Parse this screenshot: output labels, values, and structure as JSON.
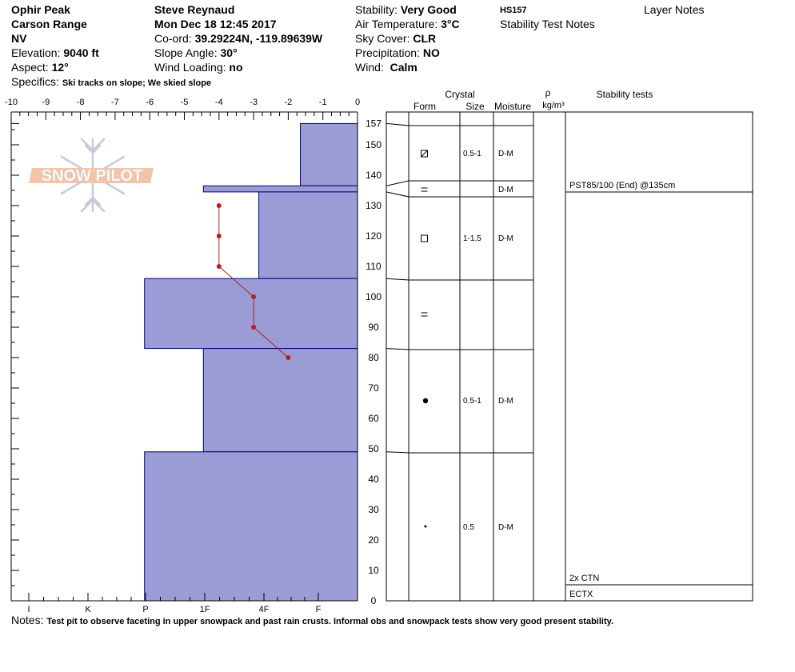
{
  "header": {
    "location": "Ophir Peak",
    "range": "Carson Range",
    "state": "NV",
    "elevation_label": "Elevation:",
    "elevation": "9040 ft",
    "aspect_label": "Aspect:",
    "aspect": "12°",
    "specifics_label": "Specifics:",
    "specifics": "Ski tracks on slope; We skied slope",
    "observer": "Steve Reynaud",
    "datetime": "Mon Dec 18 12:45 2017",
    "coord_label": "Co-ord:",
    "coord": "39.29224N, -119.89639W",
    "slope_label": "Slope Angle:",
    "slope": "30°",
    "wind_loading_label": "Wind Loading:",
    "wind_loading": "no",
    "stability_label": "Stability:",
    "stability": "Very Good",
    "air_temp_label": "Air Temperature:",
    "air_temp": "3°C",
    "sky_label": "Sky Cover:",
    "sky": "CLR",
    "precip_label": "Precipitation:",
    "precip": "NO",
    "wind_label": "Wind:",
    "wind": "Calm",
    "hs": "HS157",
    "stability_notes": "Stability Test Notes",
    "layer_notes": "Layer Notes"
  },
  "logo_text": "SNOW PILOT",
  "notes_label": "Notes:",
  "notes": "Test pit to observe faceting in upper snowpack and past rain crusts.  Informal obs and snowpack tests show very good present stability.",
  "table_headers": {
    "crystal": "Crystal",
    "form": "Form",
    "size": "Size",
    "moisture": "Moisture",
    "rho": "ρ",
    "density_unit": "kg/m³",
    "stability_tests": "Stability tests"
  },
  "colors": {
    "layer_fill": "#9b9bd6",
    "layer_stroke": "#000080",
    "temp_line": "#b22222"
  },
  "chart_data": {
    "type": "bar",
    "orientation": "horizontal",
    "x_temp_ticks": [
      "-10",
      "-9",
      "-8",
      "-7",
      "-6",
      "-5",
      "-4",
      "-3",
      "-2",
      "-1",
      "0"
    ],
    "x_temp_range": [
      -10,
      0
    ],
    "hardness_ticks": [
      "I",
      "K",
      "P",
      "1F",
      "4F",
      "F"
    ],
    "y_range": [
      0,
      160
    ],
    "y_ticks": [
      "0",
      "10",
      "20",
      "30",
      "40",
      "50",
      "60",
      "70",
      "80",
      "90",
      "100",
      "110",
      "120",
      "130",
      "140",
      "150",
      "157"
    ],
    "layers": [
      {
        "bottom": 136.5,
        "top": 157,
        "hardness_temp": -1.65,
        "form": "facets-rounding",
        "size": "0.5-1",
        "moisture": "D-M"
      },
      {
        "bottom": 134.5,
        "top": 136.5,
        "hardness_temp": -4.45,
        "form": "crust",
        "size": "",
        "moisture": "D-M"
      },
      {
        "bottom": 106,
        "top": 134.5,
        "hardness_temp": -2.85,
        "form": "faceted",
        "size": "1-1.5",
        "moisture": "D-M"
      },
      {
        "bottom": 83,
        "top": 106,
        "hardness_temp": -6.15,
        "form": "crust",
        "size": "",
        "moisture": ""
      },
      {
        "bottom": 49,
        "top": 83,
        "hardness_temp": -4.45,
        "form": "rounded",
        "size": "0.5-1",
        "moisture": "D-M"
      },
      {
        "bottom": 0,
        "top": 49,
        "hardness_temp": -6.15,
        "form": "small-rounded",
        "size": "0.5",
        "moisture": "D-M"
      }
    ],
    "temperature_profile": [
      {
        "depth": 130,
        "temp": -4
      },
      {
        "depth": 120,
        "temp": -4
      },
      {
        "depth": 110,
        "temp": -4
      },
      {
        "depth": 100,
        "temp": -3
      },
      {
        "depth": 90,
        "temp": -3
      },
      {
        "depth": 80,
        "temp": -2
      }
    ],
    "stability_tests": [
      {
        "depth": 135,
        "label": "PST85/100 (End) @135cm"
      },
      {
        "depth": 5,
        "label": "2x CTN"
      },
      {
        "depth": 0,
        "label": "ECTX"
      }
    ]
  }
}
